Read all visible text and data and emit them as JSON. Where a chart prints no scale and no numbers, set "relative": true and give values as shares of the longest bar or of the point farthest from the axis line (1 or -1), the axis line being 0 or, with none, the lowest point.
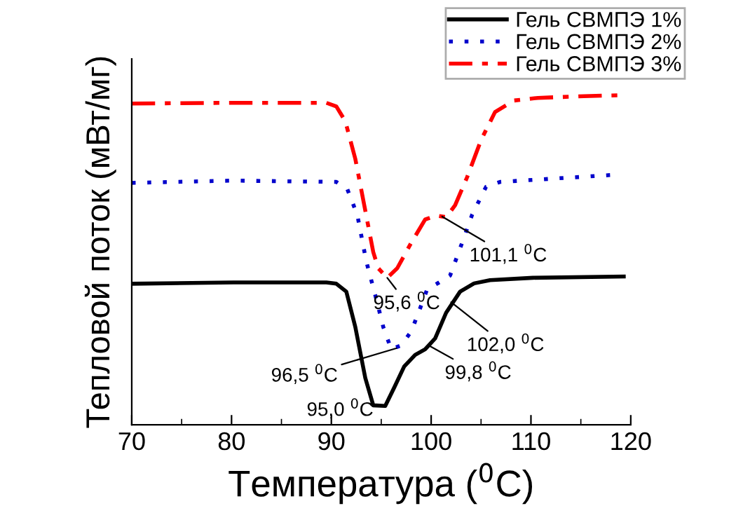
{
  "chart_data": {
    "type": "line",
    "relative": true,
    "xlabel": "Температура ($^{0}$C)",
    "ylabel": "Тепловой поток (мВт/мг)",
    "xlim": [
      70,
      120
    ],
    "xticks": [
      70,
      80,
      90,
      100,
      110,
      120
    ],
    "legend": "top right",
    "grid": false,
    "series": [
      {
        "name": "Гель СВМПЭ 1%",
        "color": "#000000",
        "line_style": "solid",
        "x": [
          70,
          80.2,
          89.5,
          90.5,
          91.5,
          92.4,
          93.4,
          94.2,
          95.4,
          96.3,
          97.3,
          98.4,
          99.4,
          100.4,
          101.5,
          102.9,
          104.3,
          105.9,
          110.2,
          119.3
        ],
        "values": [
          0.428,
          0.432,
          0.432,
          0.428,
          0.404,
          0.297,
          0.142,
          0.059,
          0.057,
          0.113,
          0.177,
          0.212,
          0.229,
          0.262,
          0.34,
          0.404,
          0.429,
          0.439,
          0.446,
          0.45
        ]
      },
      {
        "name": "Гель СВМПЭ 2%",
        "color": "#0000cc",
        "line_style": "dotted",
        "x": [
          70,
          80.2,
          90.5,
          91.6,
          92.6,
          93.5,
          94.5,
          95.2,
          96.0,
          97.0,
          98.0,
          98.9,
          99.6,
          100.8,
          101.9,
          103.1,
          104.1,
          105.5,
          106.9,
          110.7,
          118.1
        ],
        "values": [
          0.734,
          0.741,
          0.737,
          0.715,
          0.637,
          0.496,
          0.382,
          0.297,
          0.229,
          0.241,
          0.283,
          0.354,
          0.411,
          0.432,
          0.453,
          0.552,
          0.637,
          0.722,
          0.737,
          0.744,
          0.758
        ]
      },
      {
        "name": "Гель СВМПЭ 3%",
        "color": "#ff0000",
        "line_style": "dashdot",
        "x": [
          70,
          80.2,
          89.5,
          90.5,
          91.4,
          92.4,
          93.3,
          94.2,
          94.7,
          95.6,
          96.6,
          98.0,
          99.4,
          100.5,
          101.5,
          102.4,
          103.6,
          105.0,
          106.4,
          108.3,
          110.7,
          115.3,
          118.8
        ],
        "values": [
          0.975,
          0.977,
          0.977,
          0.966,
          0.921,
          0.807,
          0.666,
          0.524,
          0.475,
          0.446,
          0.475,
          0.552,
          0.623,
          0.635,
          0.63,
          0.666,
          0.751,
          0.864,
          0.949,
          0.984,
          0.992,
          0.997,
          1.0
        ]
      }
    ],
    "annotations": [
      {
        "text": "95,0 $^{0}$C",
        "x": 95.0,
        "y": 0.057
      },
      {
        "text": "96,5 $^{0}$C",
        "x": 96.5,
        "y": 0.232
      },
      {
        "text": "95,6 $^{0}$C",
        "x": 95.6,
        "y": 0.446
      },
      {
        "text": "101,1 $^{0}$C",
        "x": 101.1,
        "y": 0.632
      },
      {
        "text": "102,0 $^{0}$C",
        "x": 102.0,
        "y": 0.372
      },
      {
        "text": "99,8 $^{0}$C",
        "x": 99.8,
        "y": 0.24
      }
    ]
  }
}
